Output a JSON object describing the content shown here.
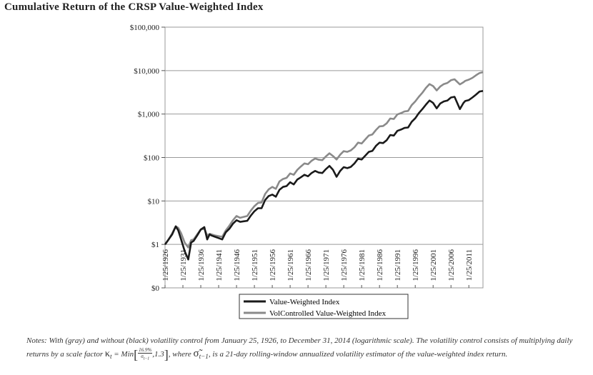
{
  "title": "Cumulative Return of the CRSP Value-Weighted Index",
  "chart_data": {
    "type": "line",
    "title": "Cumulative Return of the CRSP Value-Weighted Index",
    "y_scale": "log",
    "ylim": [
      0.1,
      100000
    ],
    "y_ticks": [
      {
        "value": 100000,
        "label": "$100,000"
      },
      {
        "value": 10000,
        "label": "$10,000"
      },
      {
        "value": 1000,
        "label": "$1,000"
      },
      {
        "value": 100,
        "label": "$100"
      },
      {
        "value": 10,
        "label": "$10"
      },
      {
        "value": 1,
        "label": "$1"
      },
      {
        "value": 0.1,
        "label": "$0"
      }
    ],
    "xlim": [
      1926,
      2014.95
    ],
    "x_ticks": [
      {
        "value": 1926,
        "label": "1/25/1926"
      },
      {
        "value": 1931,
        "label": "1/25/1931"
      },
      {
        "value": 1936,
        "label": "1/25/1936"
      },
      {
        "value": 1941,
        "label": "1/25/1941"
      },
      {
        "value": 1946,
        "label": "1/25/1946"
      },
      {
        "value": 1951,
        "label": "1/25/1951"
      },
      {
        "value": 1956,
        "label": "1/25/1956"
      },
      {
        "value": 1961,
        "label": "1/25/1961"
      },
      {
        "value": 1966,
        "label": "1/25/1966"
      },
      {
        "value": 1971,
        "label": "1/25/1971"
      },
      {
        "value": 1976,
        "label": "1/25/1976"
      },
      {
        "value": 1981,
        "label": "1/25/1981"
      },
      {
        "value": 1986,
        "label": "1/25/1986"
      },
      {
        "value": 1991,
        "label": "1/25/1991"
      },
      {
        "value": 1996,
        "label": "1/25/1996"
      },
      {
        "value": 2001,
        "label": "1/25/2001"
      },
      {
        "value": 2006,
        "label": "1/25/2006"
      },
      {
        "value": 2011,
        "label": "1/25/2011"
      }
    ],
    "series": [
      {
        "name": "Value-Weighted Index",
        "color": "#1a1a1a",
        "points": [
          [
            1926,
            1
          ],
          [
            1927,
            1.3
          ],
          [
            1928,
            1.7
          ],
          [
            1929,
            2.6
          ],
          [
            1929.7,
            2.1
          ],
          [
            1930.5,
            1.3
          ],
          [
            1931.5,
            0.7
          ],
          [
            1932.5,
            0.45
          ],
          [
            1933.3,
            1.1
          ],
          [
            1934,
            1.2
          ],
          [
            1935,
            1.6
          ],
          [
            1936,
            2.2
          ],
          [
            1937,
            2.5
          ],
          [
            1937.8,
            1.3
          ],
          [
            1938.5,
            1.7
          ],
          [
            1939,
            1.6
          ],
          [
            1940,
            1.5
          ],
          [
            1941,
            1.4
          ],
          [
            1942,
            1.3
          ],
          [
            1943,
            1.9
          ],
          [
            1944,
            2.3
          ],
          [
            1945,
            3.0
          ],
          [
            1946,
            3.6
          ],
          [
            1947,
            3.3
          ],
          [
            1948,
            3.4
          ],
          [
            1949,
            3.5
          ],
          [
            1950,
            4.6
          ],
          [
            1951,
            5.8
          ],
          [
            1952,
            6.8
          ],
          [
            1953,
            6.8
          ],
          [
            1954,
            10.5
          ],
          [
            1955,
            13
          ],
          [
            1956,
            14
          ],
          [
            1957,
            12.5
          ],
          [
            1958,
            18
          ],
          [
            1959,
            21
          ],
          [
            1960,
            22
          ],
          [
            1961,
            27
          ],
          [
            1962,
            24
          ],
          [
            1963,
            31
          ],
          [
            1964,
            35
          ],
          [
            1965,
            40
          ],
          [
            1966,
            37
          ],
          [
            1967,
            44
          ],
          [
            1968,
            49
          ],
          [
            1969,
            45
          ],
          [
            1970,
            44
          ],
          [
            1971,
            54
          ],
          [
            1972,
            64
          ],
          [
            1973,
            52
          ],
          [
            1974,
            36
          ],
          [
            1975,
            49
          ],
          [
            1976,
            60
          ],
          [
            1977,
            57
          ],
          [
            1978,
            61
          ],
          [
            1979,
            73
          ],
          [
            1980,
            94
          ],
          [
            1981,
            90
          ],
          [
            1982,
            110
          ],
          [
            1983,
            135
          ],
          [
            1984,
            142
          ],
          [
            1985,
            185
          ],
          [
            1986,
            220
          ],
          [
            1987,
            215
          ],
          [
            1988,
            250
          ],
          [
            1989,
            330
          ],
          [
            1990,
            320
          ],
          [
            1991,
            410
          ],
          [
            1992,
            440
          ],
          [
            1993,
            480
          ],
          [
            1994,
            490
          ],
          [
            1995,
            660
          ],
          [
            1996,
            800
          ],
          [
            1997,
            1050
          ],
          [
            1998,
            1300
          ],
          [
            1999,
            1650
          ],
          [
            2000,
            2050
          ],
          [
            2001,
            1800
          ],
          [
            2002,
            1350
          ],
          [
            2003,
            1750
          ],
          [
            2004,
            1950
          ],
          [
            2005,
            2050
          ],
          [
            2006,
            2400
          ],
          [
            2007,
            2500
          ],
          [
            2008.5,
            1300
          ],
          [
            2009.5,
            1800
          ],
          [
            2010,
            2000
          ],
          [
            2011,
            2100
          ],
          [
            2012,
            2400
          ],
          [
            2013,
            2800
          ],
          [
            2014,
            3300
          ],
          [
            2014.95,
            3400
          ]
        ]
      },
      {
        "name": "VolControlled Value-Weighted Index",
        "color": "#8a8a8a",
        "points": [
          [
            1926,
            1
          ],
          [
            1927,
            1.3
          ],
          [
            1928,
            1.8
          ],
          [
            1929,
            2.6
          ],
          [
            1929.7,
            2.4
          ],
          [
            1930.5,
            1.8
          ],
          [
            1931.5,
            1.1
          ],
          [
            1932.5,
            0.85
          ],
          [
            1933.3,
            1.25
          ],
          [
            1934,
            1.3
          ],
          [
            1935,
            1.7
          ],
          [
            1936,
            2.2
          ],
          [
            1937,
            2.3
          ],
          [
            1937.8,
            1.6
          ],
          [
            1938.5,
            1.75
          ],
          [
            1939,
            1.7
          ],
          [
            1940,
            1.6
          ],
          [
            1941,
            1.55
          ],
          [
            1942,
            1.5
          ],
          [
            1943,
            2.1
          ],
          [
            1944,
            2.7
          ],
          [
            1945,
            3.6
          ],
          [
            1946,
            4.5
          ],
          [
            1947,
            4.1
          ],
          [
            1948,
            4.3
          ],
          [
            1949,
            4.5
          ],
          [
            1950,
            6
          ],
          [
            1951,
            7.6
          ],
          [
            1952,
            9
          ],
          [
            1953,
            9.2
          ],
          [
            1954,
            14.5
          ],
          [
            1955,
            18.5
          ],
          [
            1956,
            21
          ],
          [
            1957,
            19
          ],
          [
            1958,
            28
          ],
          [
            1959,
            32
          ],
          [
            1960,
            34
          ],
          [
            1961,
            43
          ],
          [
            1962,
            40
          ],
          [
            1963,
            52
          ],
          [
            1964,
            62
          ],
          [
            1965,
            73
          ],
          [
            1966,
            70
          ],
          [
            1967,
            84
          ],
          [
            1968,
            95
          ],
          [
            1969,
            89
          ],
          [
            1970,
            87
          ],
          [
            1971,
            106
          ],
          [
            1972,
            125
          ],
          [
            1973,
            108
          ],
          [
            1974,
            90
          ],
          [
            1975,
            116
          ],
          [
            1976,
            140
          ],
          [
            1977,
            135
          ],
          [
            1978,
            146
          ],
          [
            1979,
            172
          ],
          [
            1980,
            220
          ],
          [
            1981,
            210
          ],
          [
            1982,
            260
          ],
          [
            1983,
            320
          ],
          [
            1984,
            340
          ],
          [
            1985,
            430
          ],
          [
            1986,
            520
          ],
          [
            1987,
            530
          ],
          [
            1988,
            610
          ],
          [
            1989,
            790
          ],
          [
            1990,
            770
          ],
          [
            1991,
            980
          ],
          [
            1992,
            1050
          ],
          [
            1993,
            1150
          ],
          [
            1994,
            1180
          ],
          [
            1995,
            1600
          ],
          [
            1996,
            1950
          ],
          [
            1997,
            2500
          ],
          [
            1998,
            3100
          ],
          [
            1999,
            4000
          ],
          [
            2000,
            4900
          ],
          [
            2001,
            4400
          ],
          [
            2002,
            3500
          ],
          [
            2003,
            4300
          ],
          [
            2004,
            4900
          ],
          [
            2005,
            5200
          ],
          [
            2006,
            6000
          ],
          [
            2007,
            6300
          ],
          [
            2008.5,
            4800
          ],
          [
            2009.5,
            5400
          ],
          [
            2010,
            5800
          ],
          [
            2011,
            6200
          ],
          [
            2012,
            6800
          ],
          [
            2013,
            7800
          ],
          [
            2014,
            8800
          ],
          [
            2014.95,
            9200
          ]
        ]
      }
    ],
    "legend_position": "bottom-center"
  },
  "notes": {
    "part1": "Notes: With (gray) and without (black) volatility control from January 25, 1926, to December 31, 2014 (logarithmic scale). The volatility control consists of multiplying daily returns by a scale factor ",
    "kappa": "κ",
    "kappa_sub": "t",
    "eq_min": "= Min",
    "frac_num": "16.9%",
    "frac_den": "σ",
    "frac_den_sub": "t−1",
    "after_frac": ",1.3",
    "where": ", where ",
    "sigma_hat": "σ̃",
    "sigma_sub": "t−1",
    "part2": ", is a 21-day rolling-window annualized volatility estimator of the value-weighted index return."
  }
}
